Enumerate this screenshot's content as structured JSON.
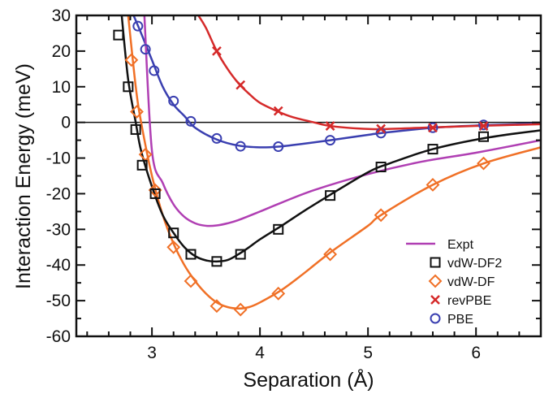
{
  "chart_data": {
    "type": "line",
    "xlabel": "Separation (Å)",
    "ylabel": "Interaction Energy (meV)",
    "xlim": [
      2.3,
      6.6
    ],
    "ylim": [
      -60,
      30
    ],
    "x_ticks": [
      3,
      4,
      5,
      6
    ],
    "y_ticks": [
      30,
      20,
      10,
      0,
      -10,
      -20,
      -30,
      -40,
      -50,
      -60
    ],
    "grid": false,
    "zero_line": true,
    "legend_position": "bottom-right",
    "series": [
      {
        "name": "Expt",
        "color": "#b03fb3",
        "line": true,
        "marker": "none",
        "curve": [
          [
            2.93,
            30
          ],
          [
            3.0,
            -8
          ],
          [
            3.1,
            -17
          ],
          [
            3.2,
            -23
          ],
          [
            3.3,
            -26.5
          ],
          [
            3.4,
            -28.3
          ],
          [
            3.5,
            -29
          ],
          [
            3.6,
            -28.9
          ],
          [
            3.7,
            -28.3
          ],
          [
            3.8,
            -27.4
          ],
          [
            4.0,
            -25
          ],
          [
            4.2,
            -22.5
          ],
          [
            4.5,
            -19
          ],
          [
            5.0,
            -14.5
          ],
          [
            5.5,
            -11
          ],
          [
            6.0,
            -8.5
          ],
          [
            6.6,
            -5
          ]
        ],
        "points": []
      },
      {
        "name": "vdW-DF2",
        "color": "#111111",
        "line": true,
        "marker": "square",
        "curve": [
          [
            2.72,
            30
          ],
          [
            2.78,
            12
          ],
          [
            2.85,
            0
          ],
          [
            2.9,
            -8
          ],
          [
            3.0,
            -18
          ],
          [
            3.1,
            -26
          ],
          [
            3.2,
            -31
          ],
          [
            3.3,
            -35
          ],
          [
            3.4,
            -37.5
          ],
          [
            3.5,
            -38.7
          ],
          [
            3.6,
            -39
          ],
          [
            3.7,
            -38.6
          ],
          [
            3.8,
            -37
          ],
          [
            3.9,
            -35
          ],
          [
            4.0,
            -32.8
          ],
          [
            4.2,
            -29
          ],
          [
            4.4,
            -25
          ],
          [
            4.65,
            -20.3
          ],
          [
            5.0,
            -14
          ],
          [
            5.2,
            -11.5
          ],
          [
            5.6,
            -7.5
          ],
          [
            6.1,
            -4.3
          ],
          [
            6.6,
            -2.2
          ]
        ],
        "points": [
          [
            2.69,
            24.5
          ],
          [
            2.78,
            10
          ],
          [
            2.85,
            -2
          ],
          [
            2.91,
            -12
          ],
          [
            3.03,
            -20
          ],
          [
            3.2,
            -31
          ],
          [
            3.36,
            -37
          ],
          [
            3.6,
            -39
          ],
          [
            3.82,
            -37
          ],
          [
            4.17,
            -30
          ],
          [
            4.65,
            -20.5
          ],
          [
            5.12,
            -12.5
          ],
          [
            5.6,
            -7.5
          ],
          [
            6.07,
            -4
          ]
        ]
      },
      {
        "name": "vdW-DF",
        "color": "#f07026",
        "line": true,
        "marker": "diamond",
        "curve": [
          [
            2.78,
            30
          ],
          [
            2.85,
            10
          ],
          [
            2.9,
            0
          ],
          [
            3.0,
            -15
          ],
          [
            3.1,
            -26
          ],
          [
            3.2,
            -34
          ],
          [
            3.3,
            -40
          ],
          [
            3.4,
            -44.5
          ],
          [
            3.5,
            -48
          ],
          [
            3.6,
            -50.5
          ],
          [
            3.7,
            -51.8
          ],
          [
            3.8,
            -52.2
          ],
          [
            3.9,
            -51.8
          ],
          [
            4.0,
            -50.5
          ],
          [
            4.2,
            -47
          ],
          [
            4.4,
            -42.5
          ],
          [
            4.65,
            -36.5
          ],
          [
            5.0,
            -29
          ],
          [
            5.12,
            -26
          ],
          [
            5.6,
            -17.5
          ],
          [
            6.07,
            -11.5
          ],
          [
            6.6,
            -7
          ]
        ],
        "points": [
          [
            2.81,
            17.5
          ],
          [
            2.86,
            3
          ],
          [
            2.94,
            -9
          ],
          [
            3.03,
            -19
          ],
          [
            3.2,
            -35
          ],
          [
            3.36,
            -44.5
          ],
          [
            3.6,
            -51.5
          ],
          [
            3.82,
            -52.5
          ],
          [
            4.17,
            -48
          ],
          [
            4.65,
            -37
          ],
          [
            5.12,
            -26
          ],
          [
            5.6,
            -17.5
          ],
          [
            6.07,
            -11.5
          ]
        ]
      },
      {
        "name": "revPBE",
        "color": "#d52a2a",
        "line": true,
        "marker": "x",
        "curve": [
          [
            3.43,
            30
          ],
          [
            3.5,
            26.5
          ],
          [
            3.6,
            20
          ],
          [
            3.7,
            15
          ],
          [
            3.8,
            11
          ],
          [
            3.9,
            8
          ],
          [
            4.0,
            5.5
          ],
          [
            4.17,
            3
          ],
          [
            4.3,
            1.5
          ],
          [
            4.5,
            0
          ],
          [
            4.65,
            -1
          ],
          [
            4.9,
            -1.7
          ],
          [
            5.12,
            -1.9
          ],
          [
            5.5,
            -1.5
          ],
          [
            6.0,
            -1.0
          ],
          [
            6.6,
            -0.5
          ]
        ],
        "points": [
          [
            3.6,
            20
          ],
          [
            3.82,
            10.5
          ],
          [
            4.17,
            3.2
          ],
          [
            4.65,
            -1
          ],
          [
            5.12,
            -1.8
          ],
          [
            5.6,
            -1.5
          ],
          [
            6.07,
            -1
          ]
        ]
      },
      {
        "name": "PBE",
        "color": "#3a3fb0",
        "line": true,
        "marker": "circle",
        "curve": [
          [
            2.83,
            30
          ],
          [
            2.9,
            25
          ],
          [
            3.0,
            17.5
          ],
          [
            3.1,
            10
          ],
          [
            3.2,
            5
          ],
          [
            3.3,
            1.8
          ],
          [
            3.4,
            -1.5
          ],
          [
            3.6,
            -4.8
          ],
          [
            3.8,
            -6.5
          ],
          [
            4.0,
            -7
          ],
          [
            4.17,
            -6.8
          ],
          [
            4.4,
            -6
          ],
          [
            4.65,
            -5
          ],
          [
            5.0,
            -3.5
          ],
          [
            5.12,
            -3
          ],
          [
            5.6,
            -1.5
          ],
          [
            6.07,
            -0.8
          ],
          [
            6.6,
            -0.3
          ]
        ],
        "points": [
          [
            2.87,
            27
          ],
          [
            2.94,
            20.5
          ],
          [
            3.02,
            14.5
          ],
          [
            3.2,
            6
          ],
          [
            3.36,
            0.3
          ],
          [
            3.6,
            -4.5
          ],
          [
            3.82,
            -6.7
          ],
          [
            4.17,
            -6.8
          ],
          [
            4.65,
            -5
          ],
          [
            5.12,
            -3
          ],
          [
            5.6,
            -1.5
          ],
          [
            6.07,
            -0.7
          ]
        ]
      }
    ]
  }
}
